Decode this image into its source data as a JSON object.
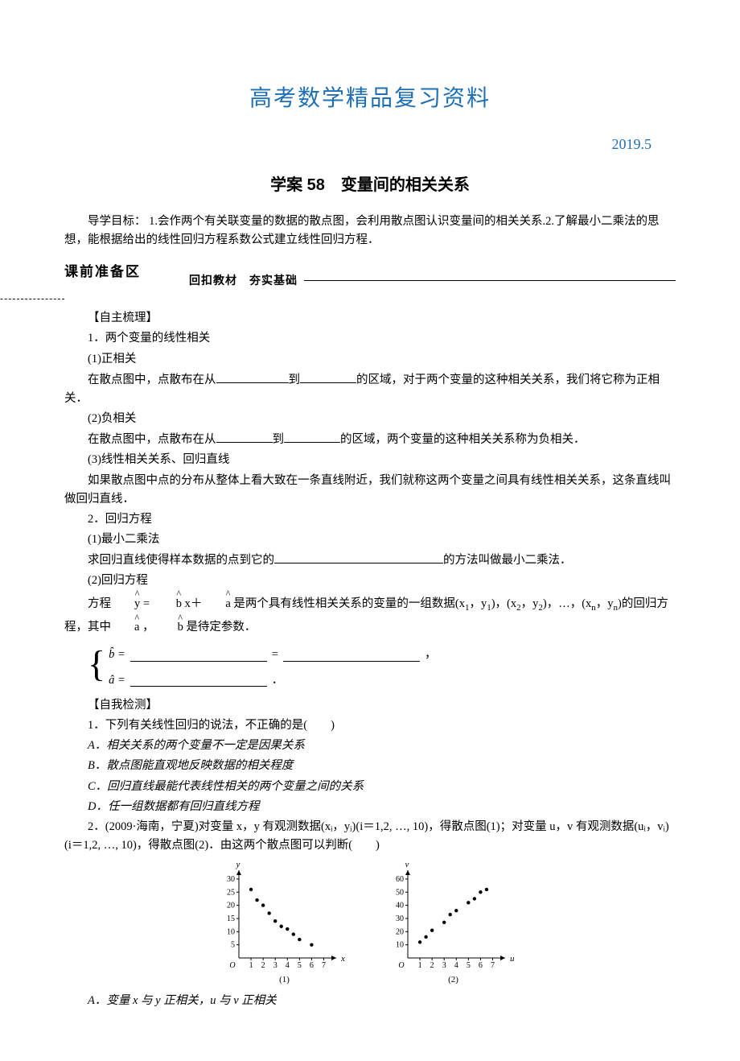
{
  "header": {
    "title": "高考数学精品复习资料",
    "date": "2019.5",
    "subtitle": "学案 58　变量间的相关关系"
  },
  "intro": "导学目标：  1.会作两个有关联变量的数据的散点图，会利用散点图认识变量间的相关关系.2.了解最小二乘法的思想，能根据给出的线性回归方程系数公式建立线性回归方程．",
  "sectionBar": {
    "label": "课前准备区",
    "mid": "回扣教材　夯实基础"
  },
  "headings": {
    "zizhu": "【自主梳理】",
    "ziwo": "【自我检测】"
  },
  "body": {
    "q1": "1．两个变量的线性相关",
    "q1_1": "(1)正相关",
    "q1_1t_a": "在散点图中，点散布在从",
    "q1_1t_b": "到",
    "q1_1t_c": "的区域，对于两个变量的这种相关关系，我们将它称为正相关．",
    "q1_2": "(2)负相关",
    "q1_2t_a": "在散点图中，点散布在从",
    "q1_2t_b": "到",
    "q1_2t_c": "的区域，两个变量的这种相关关系称为负相关．",
    "q1_3": "(3)线性相关关系、回归直线",
    "q1_3t": "如果散点图中点的分布从整体上看大致在一条直线附近，我们就称这两个变量之间具有线性相关关系，这条直线叫做回归直线．",
    "q2": "2．回归方程",
    "q2_1": "(1)最小二乘法",
    "q2_1t_a": "求回归直线使得样本数据的点到它的",
    "q2_1t_b": "的方法叫做最小二乘法．",
    "q2_2": "(2)回归方程",
    "q2_2t_a": "方程",
    "q2_2t_b": " = ",
    "q2_2t_c": " x＋",
    "q2_2t_d": " 是两个具有线性相关关系的变量的一组数据(x",
    "q2_2t_e": "，y",
    "q2_2t_f": ")，(x",
    "q2_2t_g": "，y",
    "q2_2t_h": ")，…，(x",
    "q2_2t_i": "，y",
    "q2_2t_j": ")的回归方程，其中",
    "q2_2t_k": " ，",
    "q2_2t_l": " 是待定参数．",
    "brace_eq": " = ",
    "brace_comma": " ，",
    "brace_period": " ．",
    "c1": "1．下列有关线性回归的说法，不正确的是(　　)",
    "c1a": "A．相关关系的两个变量不一定是因果关系",
    "c1b": "B．散点图能直观地反映数据的相关程度",
    "c1c": "C．回归直线最能代表线性相关的两个变量之间的关系",
    "c1d": "D．任一组数据都有回归直线方程",
    "c2": "2．(2009·海南，宁夏)对变量 x，y 有观测数据(xᵢ，yᵢ)(i＝1,2, …, 10)，得散点图(1)；对变量 u，v 有观测数据(uᵢ，vᵢ)(i＝1,2, …, 10)，得散点图(2)．由这两个散点图可以判断(　　)",
    "c2a": "A．变量 x 与 y 正相关，u 与 v 正相关"
  },
  "chart1": {
    "type": "scatter",
    "xlabel": "x",
    "ylabel": "y",
    "yticks": [
      5,
      10,
      15,
      20,
      25,
      30
    ],
    "xticks": [
      1,
      2,
      3,
      4,
      5,
      6,
      7
    ],
    "points": [
      [
        1,
        26
      ],
      [
        1.5,
        22
      ],
      [
        2,
        20
      ],
      [
        2.5,
        17
      ],
      [
        3,
        14
      ],
      [
        3.5,
        12
      ],
      [
        4,
        11
      ],
      [
        4.5,
        9
      ],
      [
        5,
        7
      ],
      [
        6,
        5
      ]
    ],
    "caption": "(1)",
    "axis_color": "#000000",
    "point_color": "#000000",
    "fontsize": 10
  },
  "chart2": {
    "type": "scatter",
    "xlabel": "u",
    "ylabel": "v",
    "yticks": [
      10,
      20,
      30,
      40,
      50,
      60
    ],
    "xticks": [
      1,
      2,
      3,
      4,
      5,
      6,
      7
    ],
    "points": [
      [
        1,
        12
      ],
      [
        1.5,
        16
      ],
      [
        2,
        21
      ],
      [
        3,
        27
      ],
      [
        3.5,
        33
      ],
      [
        4,
        36
      ],
      [
        5,
        42
      ],
      [
        5.5,
        45
      ],
      [
        6,
        50
      ],
      [
        6.5,
        52
      ]
    ],
    "caption": "(2)",
    "axis_color": "#000000",
    "point_color": "#000000",
    "fontsize": 10
  }
}
